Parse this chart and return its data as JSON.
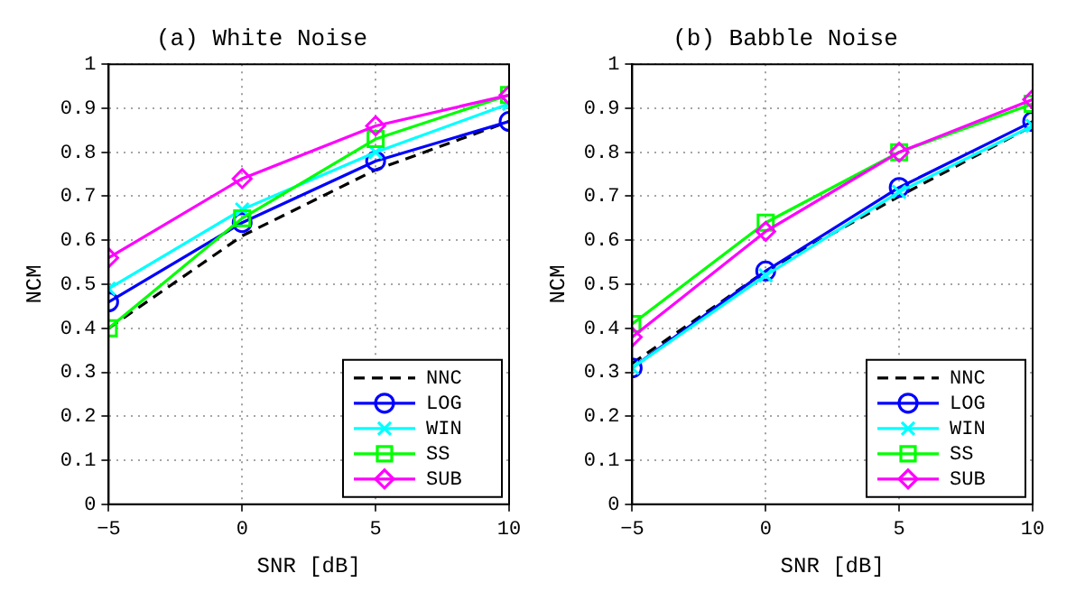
{
  "chart_data": [
    {
      "type": "line",
      "title": "(a) White Noise",
      "xlabel": "SNR [dB]",
      "ylabel": "NCM",
      "x": [
        -5,
        0,
        5,
        10
      ],
      "xlim": [
        -5,
        10
      ],
      "xticks": [
        -5,
        0,
        5,
        10
      ],
      "ylim": [
        0,
        1
      ],
      "yticks": [
        0,
        0.1,
        0.2,
        0.3,
        0.4,
        0.5,
        0.6,
        0.7,
        0.8,
        0.9,
        1
      ],
      "grid": true,
      "legend": "bottom right",
      "series": [
        {
          "name": "NNC",
          "color": "#000000",
          "marker": "none",
          "line_style": "dashed",
          "values": [
            0.4,
            0.61,
            0.76,
            0.87
          ]
        },
        {
          "name": "LOG",
          "color": "#0000ff",
          "marker": "circle",
          "line_style": "solid",
          "values": [
            0.46,
            0.64,
            0.78,
            0.87
          ]
        },
        {
          "name": "WIN",
          "color": "#00ffff",
          "marker": "cross",
          "line_style": "solid",
          "values": [
            0.49,
            0.67,
            0.8,
            0.91
          ]
        },
        {
          "name": "SS",
          "color": "#00ff00",
          "marker": "square",
          "line_style": "solid",
          "values": [
            0.4,
            0.65,
            0.83,
            0.93
          ]
        },
        {
          "name": "SUB",
          "color": "#ff00ff",
          "marker": "diamond",
          "line_style": "solid",
          "values": [
            0.56,
            0.74,
            0.86,
            0.93
          ]
        }
      ]
    },
    {
      "type": "line",
      "title": "(b) Babble Noise",
      "xlabel": "SNR [dB]",
      "ylabel": "NCM",
      "x": [
        -5,
        0,
        5,
        10
      ],
      "xlim": [
        -5,
        10
      ],
      "xticks": [
        -5,
        0,
        5,
        10
      ],
      "ylim": [
        0,
        1
      ],
      "yticks": [
        0,
        0.1,
        0.2,
        0.3,
        0.4,
        0.5,
        0.6,
        0.7,
        0.8,
        0.9,
        1
      ],
      "grid": true,
      "legend": "bottom right",
      "series": [
        {
          "name": "NNC",
          "color": "#000000",
          "marker": "none",
          "line_style": "dashed",
          "values": [
            0.32,
            0.53,
            0.7,
            0.86
          ]
        },
        {
          "name": "LOG",
          "color": "#0000ff",
          "marker": "circle",
          "line_style": "solid",
          "values": [
            0.31,
            0.53,
            0.72,
            0.87
          ]
        },
        {
          "name": "WIN",
          "color": "#00ffff",
          "marker": "cross",
          "line_style": "solid",
          "values": [
            0.31,
            0.52,
            0.71,
            0.86
          ]
        },
        {
          "name": "SS",
          "color": "#00ff00",
          "marker": "square",
          "line_style": "solid",
          "values": [
            0.41,
            0.64,
            0.8,
            0.91
          ]
        },
        {
          "name": "SUB",
          "color": "#ff00ff",
          "marker": "diamond",
          "line_style": "solid",
          "values": [
            0.38,
            0.62,
            0.8,
            0.92
          ]
        }
      ]
    }
  ]
}
